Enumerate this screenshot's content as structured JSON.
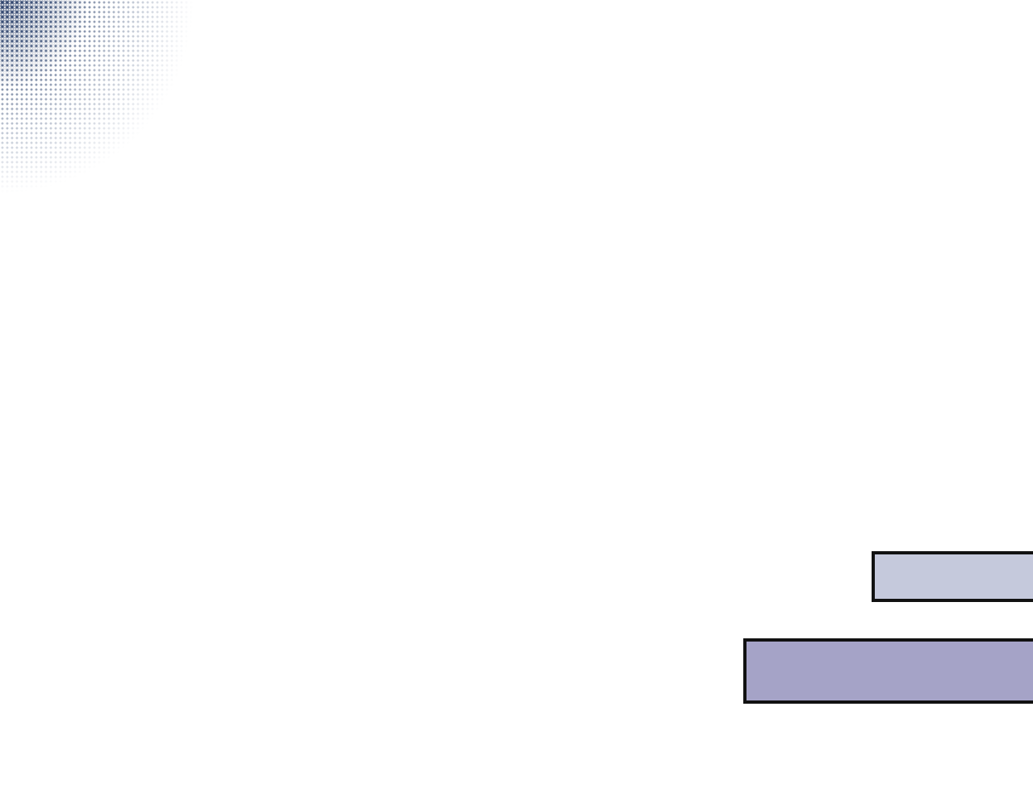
{
  "decor": {
    "halftone_color": "#2f4670"
  },
  "bars": [
    {
      "color": "#c5c9dc"
    },
    {
      "color": "#a5a3c7"
    }
  ]
}
